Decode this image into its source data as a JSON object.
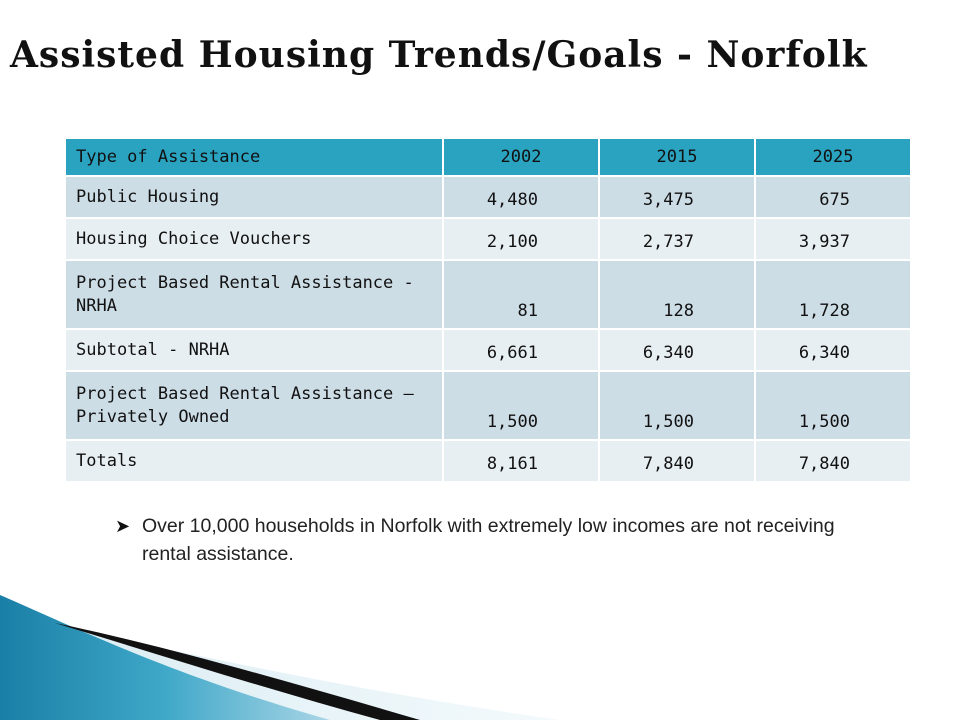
{
  "slide": {
    "title": "Assisted Housing Trends/Goals - Norfolk"
  },
  "table": {
    "headers": [
      "Type of Assistance",
      "2002",
      "2015",
      "2025"
    ],
    "rows": [
      {
        "type": "Public Housing",
        "y2002": "4,480",
        "y2015": "3,475",
        "y2025": "675"
      },
      {
        "type": "Housing Choice Vouchers",
        "y2002": "2,100",
        "y2015": "2,737",
        "y2025": "3,937"
      },
      {
        "type": "Project Based Rental Assistance - NRHA",
        "y2002": "81",
        "y2015": "128",
        "y2025": "1,728"
      },
      {
        "type": "Subtotal - NRHA",
        "y2002": "6,661",
        "y2015": "6,340",
        "y2025": "6,340"
      },
      {
        "type": "Project Based Rental Assistance – Privately Owned",
        "y2002": "1,500",
        "y2015": "1,500",
        "y2025": "1,500"
      },
      {
        "type": "Totals",
        "y2002": "8,161",
        "y2015": "7,840",
        "y2025": "7,840"
      }
    ]
  },
  "bullets": [
    "Over 10,000 households in Norfolk with extremely low incomes are not receiving rental assistance."
  ],
  "colors": {
    "header_bg": "#2aa3c1",
    "row_odd_bg": "#cddde6",
    "row_even_bg": "#e7eff3",
    "swoosh_teal": "#1e8ab0"
  }
}
